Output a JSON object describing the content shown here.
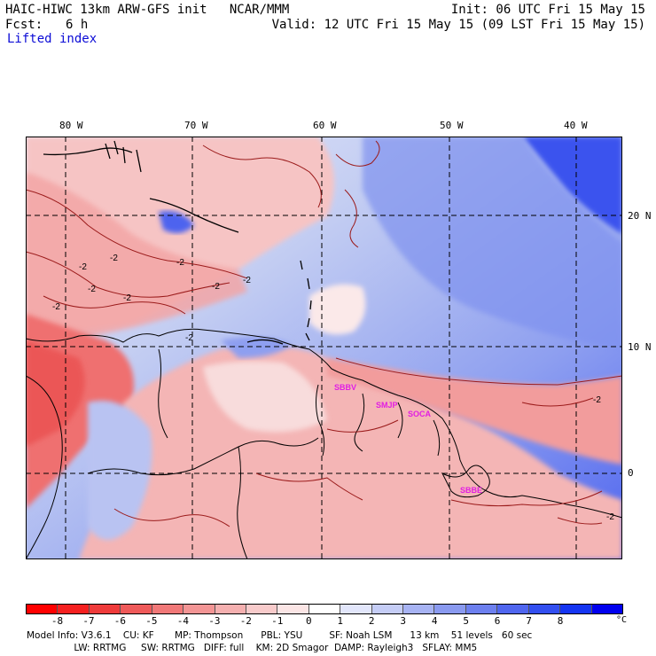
{
  "header": {
    "title_left": "HAIC-HIWC 13km ARW-GFS init   NCAR/MMM",
    "init": "Init: 06 UTC Fri 15 May 15",
    "fcst_label": "Fcst:",
    "fcst_value": "6 h",
    "valid": "Valid: 12 UTC Fri 15 May 15 (09 LST Fri 15 May 15)",
    "field": "Lifted index"
  },
  "map": {
    "longitude_labels": [
      "80 W",
      "70 W",
      "60 W",
      "50 W",
      "40 W"
    ],
    "latitude_labels": [
      "20 N",
      "10 N",
      "0"
    ],
    "contour_labels": [
      "-2",
      "-2",
      "-2",
      "-2",
      "-2",
      "-2",
      "-2",
      "-2",
      "-2",
      "-2",
      "-2"
    ],
    "station_labels": [
      "SBBV",
      "SMJP",
      "SOCA",
      "SBBE"
    ],
    "colors": {
      "ocean_blue_light": "#c3cdf2",
      "ocean_blue": "#8e9ff0",
      "ocean_blue_dark": "#5b6ef0",
      "land_pink": "#f6b7b7",
      "land_pink_light": "#f8d6d6",
      "red": "#ef6a6a",
      "contour": "#9b1b1b",
      "station": "#e21ee2"
    }
  },
  "colorbar": {
    "tick_labels": [
      "-8",
      "-7",
      "-6",
      "-5",
      "-4",
      "-3",
      "-2",
      "-1",
      "0",
      "1",
      "2",
      "3",
      "4",
      "5",
      "6",
      "7",
      "8"
    ],
    "unit": "°C",
    "colors": [
      "#ff0000",
      "#f52020",
      "#ef3b3b",
      "#ef5a5a",
      "#f17878",
      "#f39595",
      "#f5b0b0",
      "#f8cbcb",
      "#fbe5e5",
      "#ffffff",
      "#e2e6fb",
      "#c5cdf6",
      "#a7b3f3",
      "#8a9af0",
      "#6d80ef",
      "#5066ef",
      "#334ff0",
      "#1535f2",
      "#0000ee"
    ]
  },
  "footer": {
    "line1": "Model Info: V3.6.1    CU: KF       MP: Thompson      PBL: YSU         SF: Noah LSM      13 km    51 levels   60 sec",
    "line2": "                LW: RRTMG     SW: RRTMG   DIFF: full    KM: 2D Smagor  DAMP: Rayleigh3   SFLAY: MM5"
  }
}
